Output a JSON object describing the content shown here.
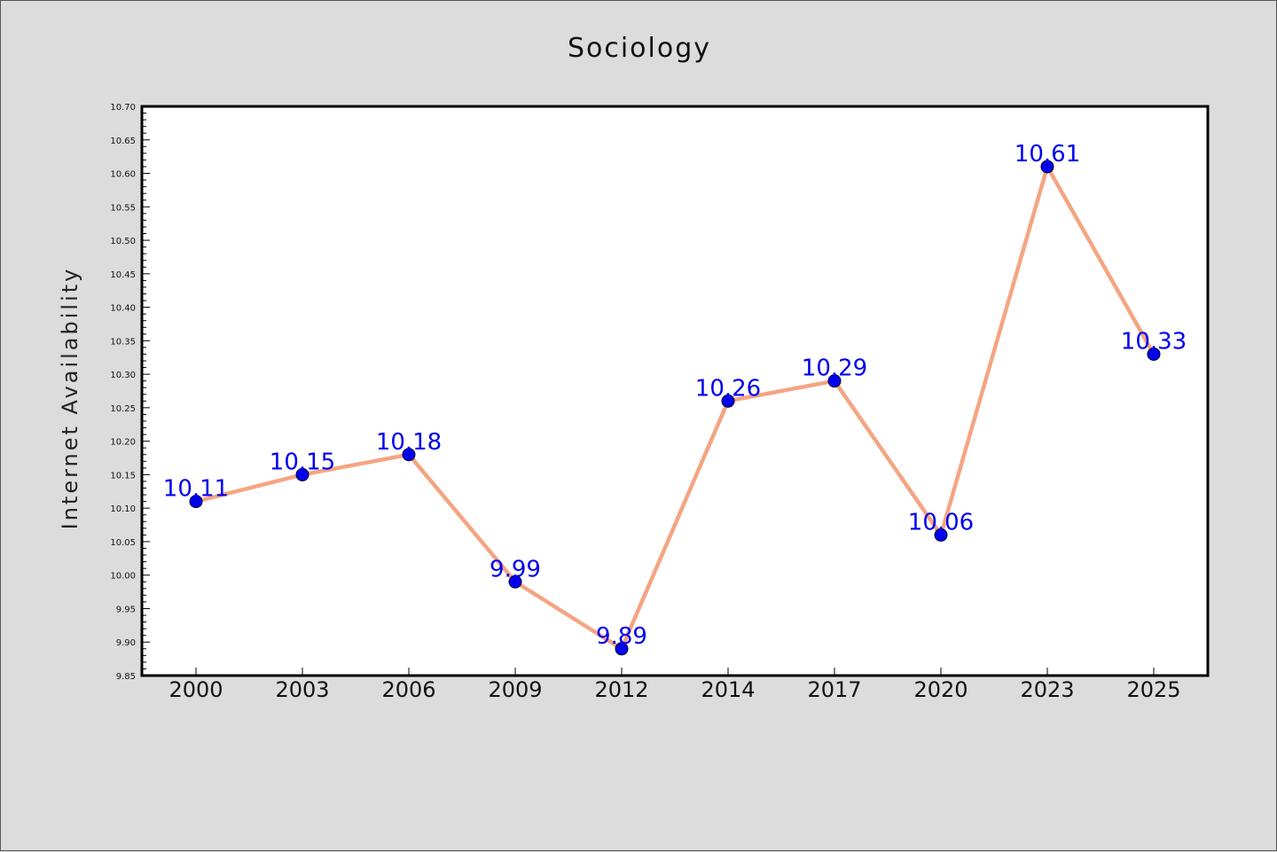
{
  "chart_data": {
    "type": "line",
    "title": "Sociology",
    "xlabel": "",
    "ylabel": "Internet Availability",
    "categories": [
      "2000",
      "2003",
      "2006",
      "2009",
      "2012",
      "2014",
      "2017",
      "2020",
      "2023",
      "2025"
    ],
    "series": [
      {
        "values": [
          10.11,
          10.15,
          10.18,
          9.99,
          9.89,
          10.26,
          10.29,
          10.06,
          10.61,
          10.33
        ],
        "data_labels": [
          "10.11",
          "10.15",
          "10.18",
          "9.99",
          "9.89",
          "10.26",
          "10.29",
          "10.06",
          "10.61",
          "10.33"
        ]
      }
    ],
    "ylim": [
      9.85,
      10.7
    ],
    "yticks": [
      "9.85",
      "9.90",
      "9.95",
      "10.00",
      "10.05",
      "10.10",
      "10.15",
      "10.20",
      "10.25",
      "10.30",
      "10.35",
      "10.40",
      "10.45",
      "10.50",
      "10.55",
      "10.60",
      "10.65",
      "10.70"
    ],
    "grid": false,
    "legend": "none"
  },
  "colors": {
    "background": "#dcdcdc",
    "plot_background": "#ffffff",
    "line": "#f4a582",
    "marker": "#0000ee",
    "data_label": "#0000ee"
  }
}
